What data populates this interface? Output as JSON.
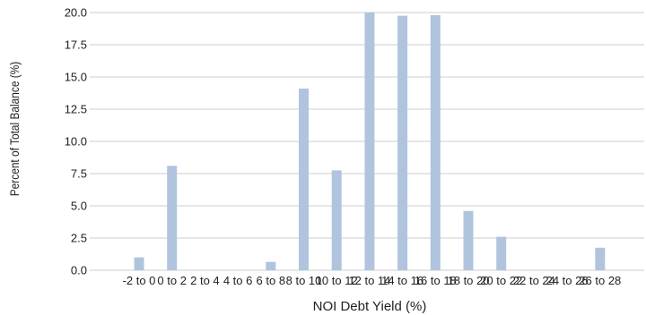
{
  "chart_data": {
    "type": "bar",
    "xlabel": "NOI Debt Yield (%)",
    "ylabel": "Percent of Total Balance (%)",
    "categories": [
      "-2 to 0",
      "0 to 2",
      "2 to 4",
      "4 to 6",
      "6 to 8",
      "8 to 10",
      "10 to 12",
      "12 to 14",
      "14 to 16",
      "16 to 18",
      "18 to 20",
      "20 to 22",
      "22 to 24",
      "24 to 26",
      "26 to 28"
    ],
    "values": [
      1.0,
      8.1,
      0,
      0,
      0.65,
      14.1,
      7.75,
      20.0,
      19.75,
      19.8,
      4.6,
      2.6,
      0,
      0,
      1.75
    ],
    "ylim": [
      0,
      20
    ],
    "yticks": [
      "0.0",
      "2.5",
      "5.0",
      "7.5",
      "10.0",
      "12.5",
      "15.0",
      "17.5",
      "20.0"
    ],
    "grid": true,
    "bar_color": "#b0c4de",
    "grid_color": "#cccccc"
  }
}
